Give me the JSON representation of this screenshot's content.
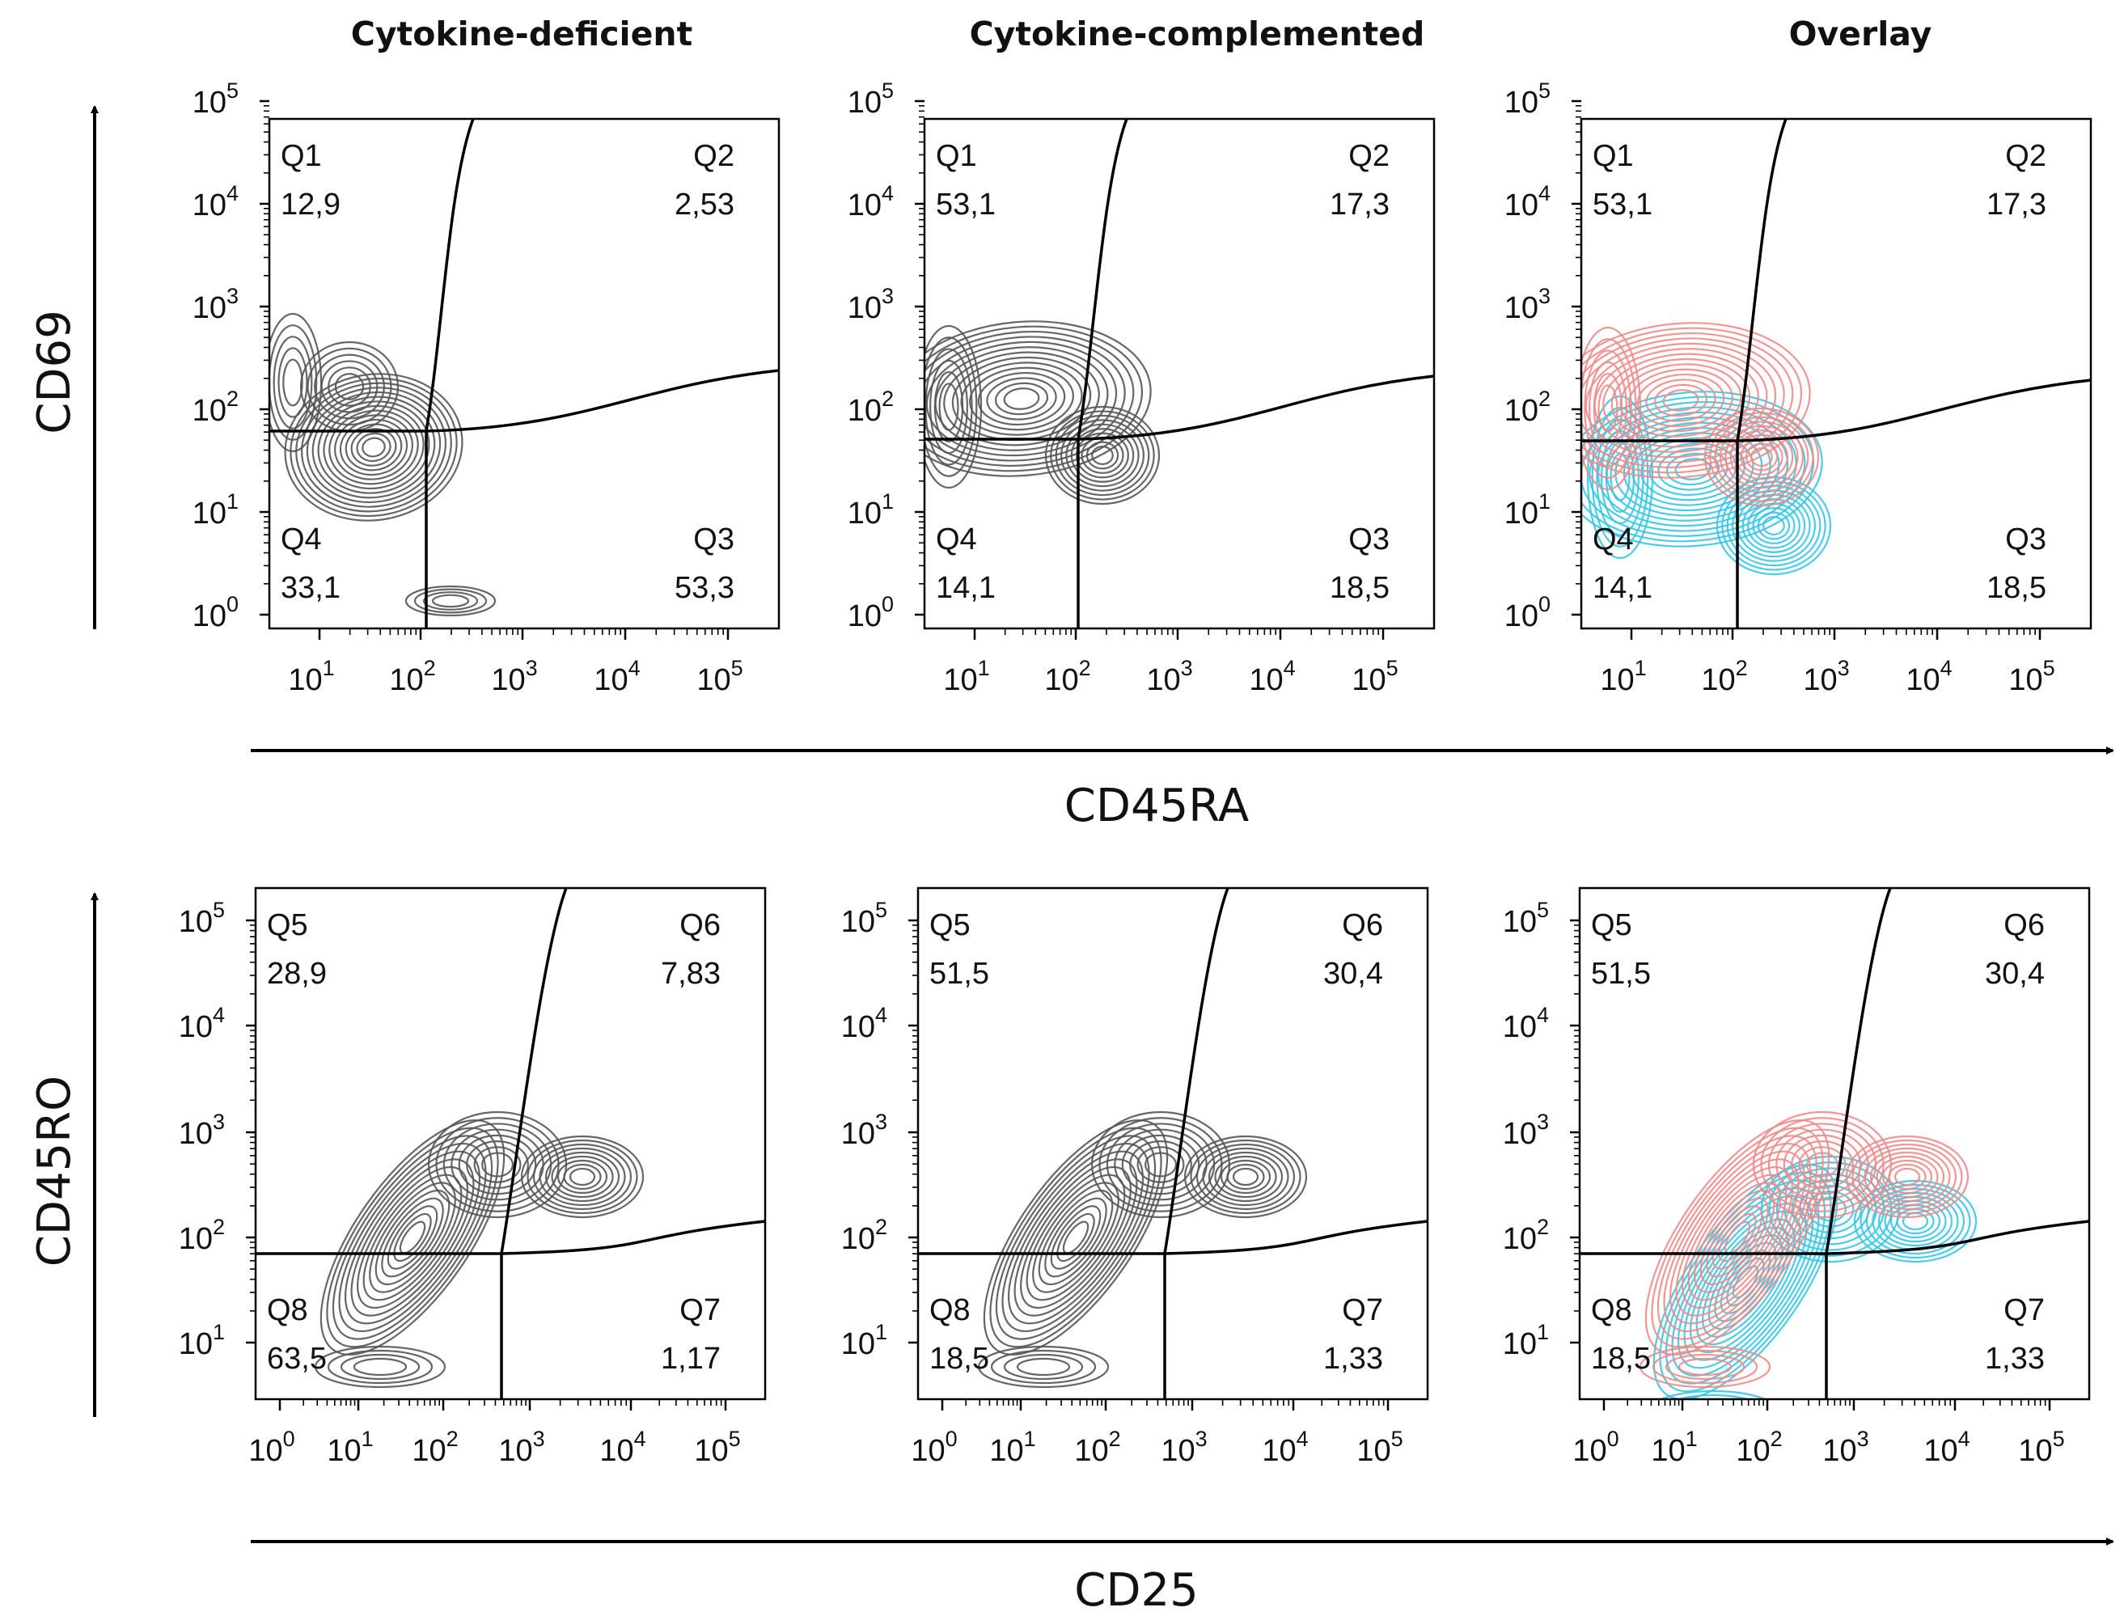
{
  "column_titles": [
    "Cytokine-deficient",
    "Cytokine-complemented",
    "Overlay"
  ],
  "colors": {
    "deficient_contours": "#555555",
    "complemented_contours": "#f08a8a",
    "overlay_deficient_contours": "#35c6e6",
    "gates": "#000000"
  },
  "chart_data": [
    {
      "type": "contour",
      "title": "Cytokine-deficient",
      "xlabel": "CD45RA",
      "ylabel": "CD69",
      "xticks": [
        "10^1",
        "10^2",
        "10^3",
        "10^4",
        "10^5"
      ],
      "yticks": [
        "10^0",
        "10^1",
        "10^2",
        "10^3",
        "10^4",
        "10^5"
      ],
      "quadrants": [
        {
          "name": "Q1",
          "value": "12,9"
        },
        {
          "name": "Q2",
          "value": "2,53"
        },
        {
          "name": "Q3",
          "value": "53,3"
        },
        {
          "name": "Q4",
          "value": "33,1"
        }
      ]
    },
    {
      "type": "contour",
      "title": "Cytokine-complemented",
      "xlabel": "CD45RA",
      "ylabel": "CD69",
      "xticks": [
        "10^1",
        "10^2",
        "10^3",
        "10^4",
        "10^5"
      ],
      "yticks": [
        "10^0",
        "10^1",
        "10^2",
        "10^3",
        "10^4",
        "10^5"
      ],
      "quadrants": [
        {
          "name": "Q1",
          "value": "53,1"
        },
        {
          "name": "Q2",
          "value": "17,3"
        },
        {
          "name": "Q3",
          "value": "18,5"
        },
        {
          "name": "Q4",
          "value": "14,1"
        }
      ]
    },
    {
      "type": "contour",
      "title": "Overlay",
      "xlabel": "CD45RA",
      "ylabel": "CD69",
      "xticks": [
        "10^1",
        "10^2",
        "10^3",
        "10^4",
        "10^5"
      ],
      "yticks": [
        "10^0",
        "10^1",
        "10^2",
        "10^3",
        "10^4",
        "10^5"
      ],
      "quadrants": [
        {
          "name": "Q1",
          "value": "53,1"
        },
        {
          "name": "Q2",
          "value": "17,3"
        },
        {
          "name": "Q3",
          "value": "18,5"
        },
        {
          "name": "Q4",
          "value": "14,1"
        }
      ]
    },
    {
      "type": "contour",
      "title": "Cytokine-deficient",
      "xlabel": "CD25",
      "ylabel": "CD45RO",
      "xticks": [
        "10^0",
        "10^1",
        "10^2",
        "10^3",
        "10^4",
        "10^5"
      ],
      "yticks": [
        "10^1",
        "10^2",
        "10^3",
        "10^4",
        "10^5"
      ],
      "quadrants": [
        {
          "name": "Q5",
          "value": "28,9"
        },
        {
          "name": "Q6",
          "value": "7,83"
        },
        {
          "name": "Q7",
          "value": "1,17"
        },
        {
          "name": "Q8",
          "value": "63,5"
        }
      ]
    },
    {
      "type": "contour",
      "title": "Cytokine-complemented",
      "xlabel": "CD25",
      "ylabel": "CD45RO",
      "xticks": [
        "10^0",
        "10^1",
        "10^2",
        "10^3",
        "10^4",
        "10^5"
      ],
      "yticks": [
        "10^1",
        "10^2",
        "10^3",
        "10^4",
        "10^5"
      ],
      "quadrants": [
        {
          "name": "Q5",
          "value": "51,5"
        },
        {
          "name": "Q6",
          "value": "30,4"
        },
        {
          "name": "Q7",
          "value": "1,33"
        },
        {
          "name": "Q8",
          "value": "18,5"
        }
      ]
    },
    {
      "type": "contour",
      "title": "Overlay",
      "xlabel": "CD25",
      "ylabel": "CD45RO",
      "xticks": [
        "10^0",
        "10^1",
        "10^2",
        "10^3",
        "10^4",
        "10^5"
      ],
      "yticks": [
        "10^1",
        "10^2",
        "10^3",
        "10^4",
        "10^5"
      ],
      "quadrants": [
        {
          "name": "Q5",
          "value": "51,5"
        },
        {
          "name": "Q6",
          "value": "30,4"
        },
        {
          "name": "Q7",
          "value": "1,33"
        },
        {
          "name": "Q8",
          "value": "18,5"
        }
      ]
    }
  ],
  "axis_labels": {
    "row1_x": "CD45RA",
    "row1_y": "CD69",
    "row2_x": "CD25",
    "row2_y": "CD45RO"
  }
}
